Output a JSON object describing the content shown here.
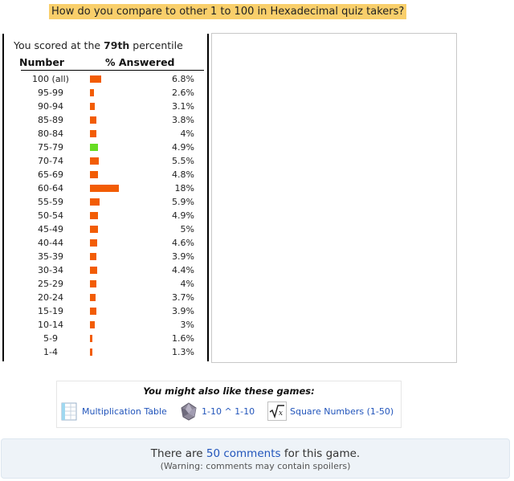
{
  "header": {
    "question": "How do you compare to other 1 to 100 in Hexadecimal quiz takers?"
  },
  "stats": {
    "score_prefix": "You scored at the ",
    "score_percentile": "79th",
    "score_suffix": " percentile",
    "col_number": "Number",
    "col_answered": "% Answered",
    "bar_color": "#f25c05",
    "highlight_color": "#66dd22",
    "rows": [
      {
        "label": "100 (all)",
        "value": "6.8%",
        "pct": 6.8
      },
      {
        "label": "95-99",
        "value": "2.6%",
        "pct": 2.6
      },
      {
        "label": "90-94",
        "value": "3.1%",
        "pct": 3.1
      },
      {
        "label": "85-89",
        "value": "3.8%",
        "pct": 3.8
      },
      {
        "label": "80-84",
        "value": "4%",
        "pct": 4
      },
      {
        "label": "75-79",
        "value": "4.9%",
        "pct": 4.9,
        "highlight": true
      },
      {
        "label": "70-74",
        "value": "5.5%",
        "pct": 5.5
      },
      {
        "label": "65-69",
        "value": "4.8%",
        "pct": 4.8
      },
      {
        "label": "60-64",
        "value": "18%",
        "pct": 18
      },
      {
        "label": "55-59",
        "value": "5.9%",
        "pct": 5.9
      },
      {
        "label": "50-54",
        "value": "4.9%",
        "pct": 4.9
      },
      {
        "label": "45-49",
        "value": "5%",
        "pct": 5
      },
      {
        "label": "40-44",
        "value": "4.6%",
        "pct": 4.6
      },
      {
        "label": "35-39",
        "value": "3.9%",
        "pct": 3.9
      },
      {
        "label": "30-34",
        "value": "4.4%",
        "pct": 4.4
      },
      {
        "label": "25-29",
        "value": "4%",
        "pct": 4
      },
      {
        "label": "20-24",
        "value": "3.7%",
        "pct": 3.7
      },
      {
        "label": "15-19",
        "value": "3.9%",
        "pct": 3.9
      },
      {
        "label": "10-14",
        "value": "3%",
        "pct": 3
      },
      {
        "label": "5-9",
        "value": "1.6%",
        "pct": 1.6
      },
      {
        "label": "1-4",
        "value": "1.3%",
        "pct": 1.3
      }
    ]
  },
  "also": {
    "title": "You might also like these games:",
    "games": [
      {
        "name": "Multiplication Table",
        "icon": "table-icon"
      },
      {
        "name": "1-10 ^ 1-10",
        "icon": "crystal-icon"
      },
      {
        "name": "Square Numbers (1-50)",
        "icon": "square-root-icon"
      }
    ]
  },
  "comments": {
    "prefix": "There are ",
    "link": "50 comments",
    "suffix": " for this game.",
    "warning": "(Warning: comments may contain spoilers)"
  }
}
